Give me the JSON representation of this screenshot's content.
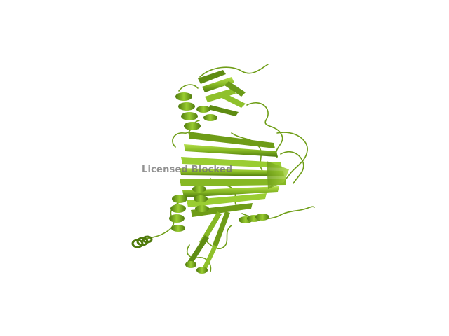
{
  "image": {
    "subject": "protein-ribbon-structure",
    "background_color": "#ffffff",
    "palette": {
      "strand_light": "#9acd32",
      "strand_mid": "#7aa61e",
      "strand_dark": "#4f7a0c",
      "helix": "#6e9a16",
      "coil": "#5f8a14"
    }
  },
  "watermark": {
    "text": "Licensed Blocked"
  }
}
